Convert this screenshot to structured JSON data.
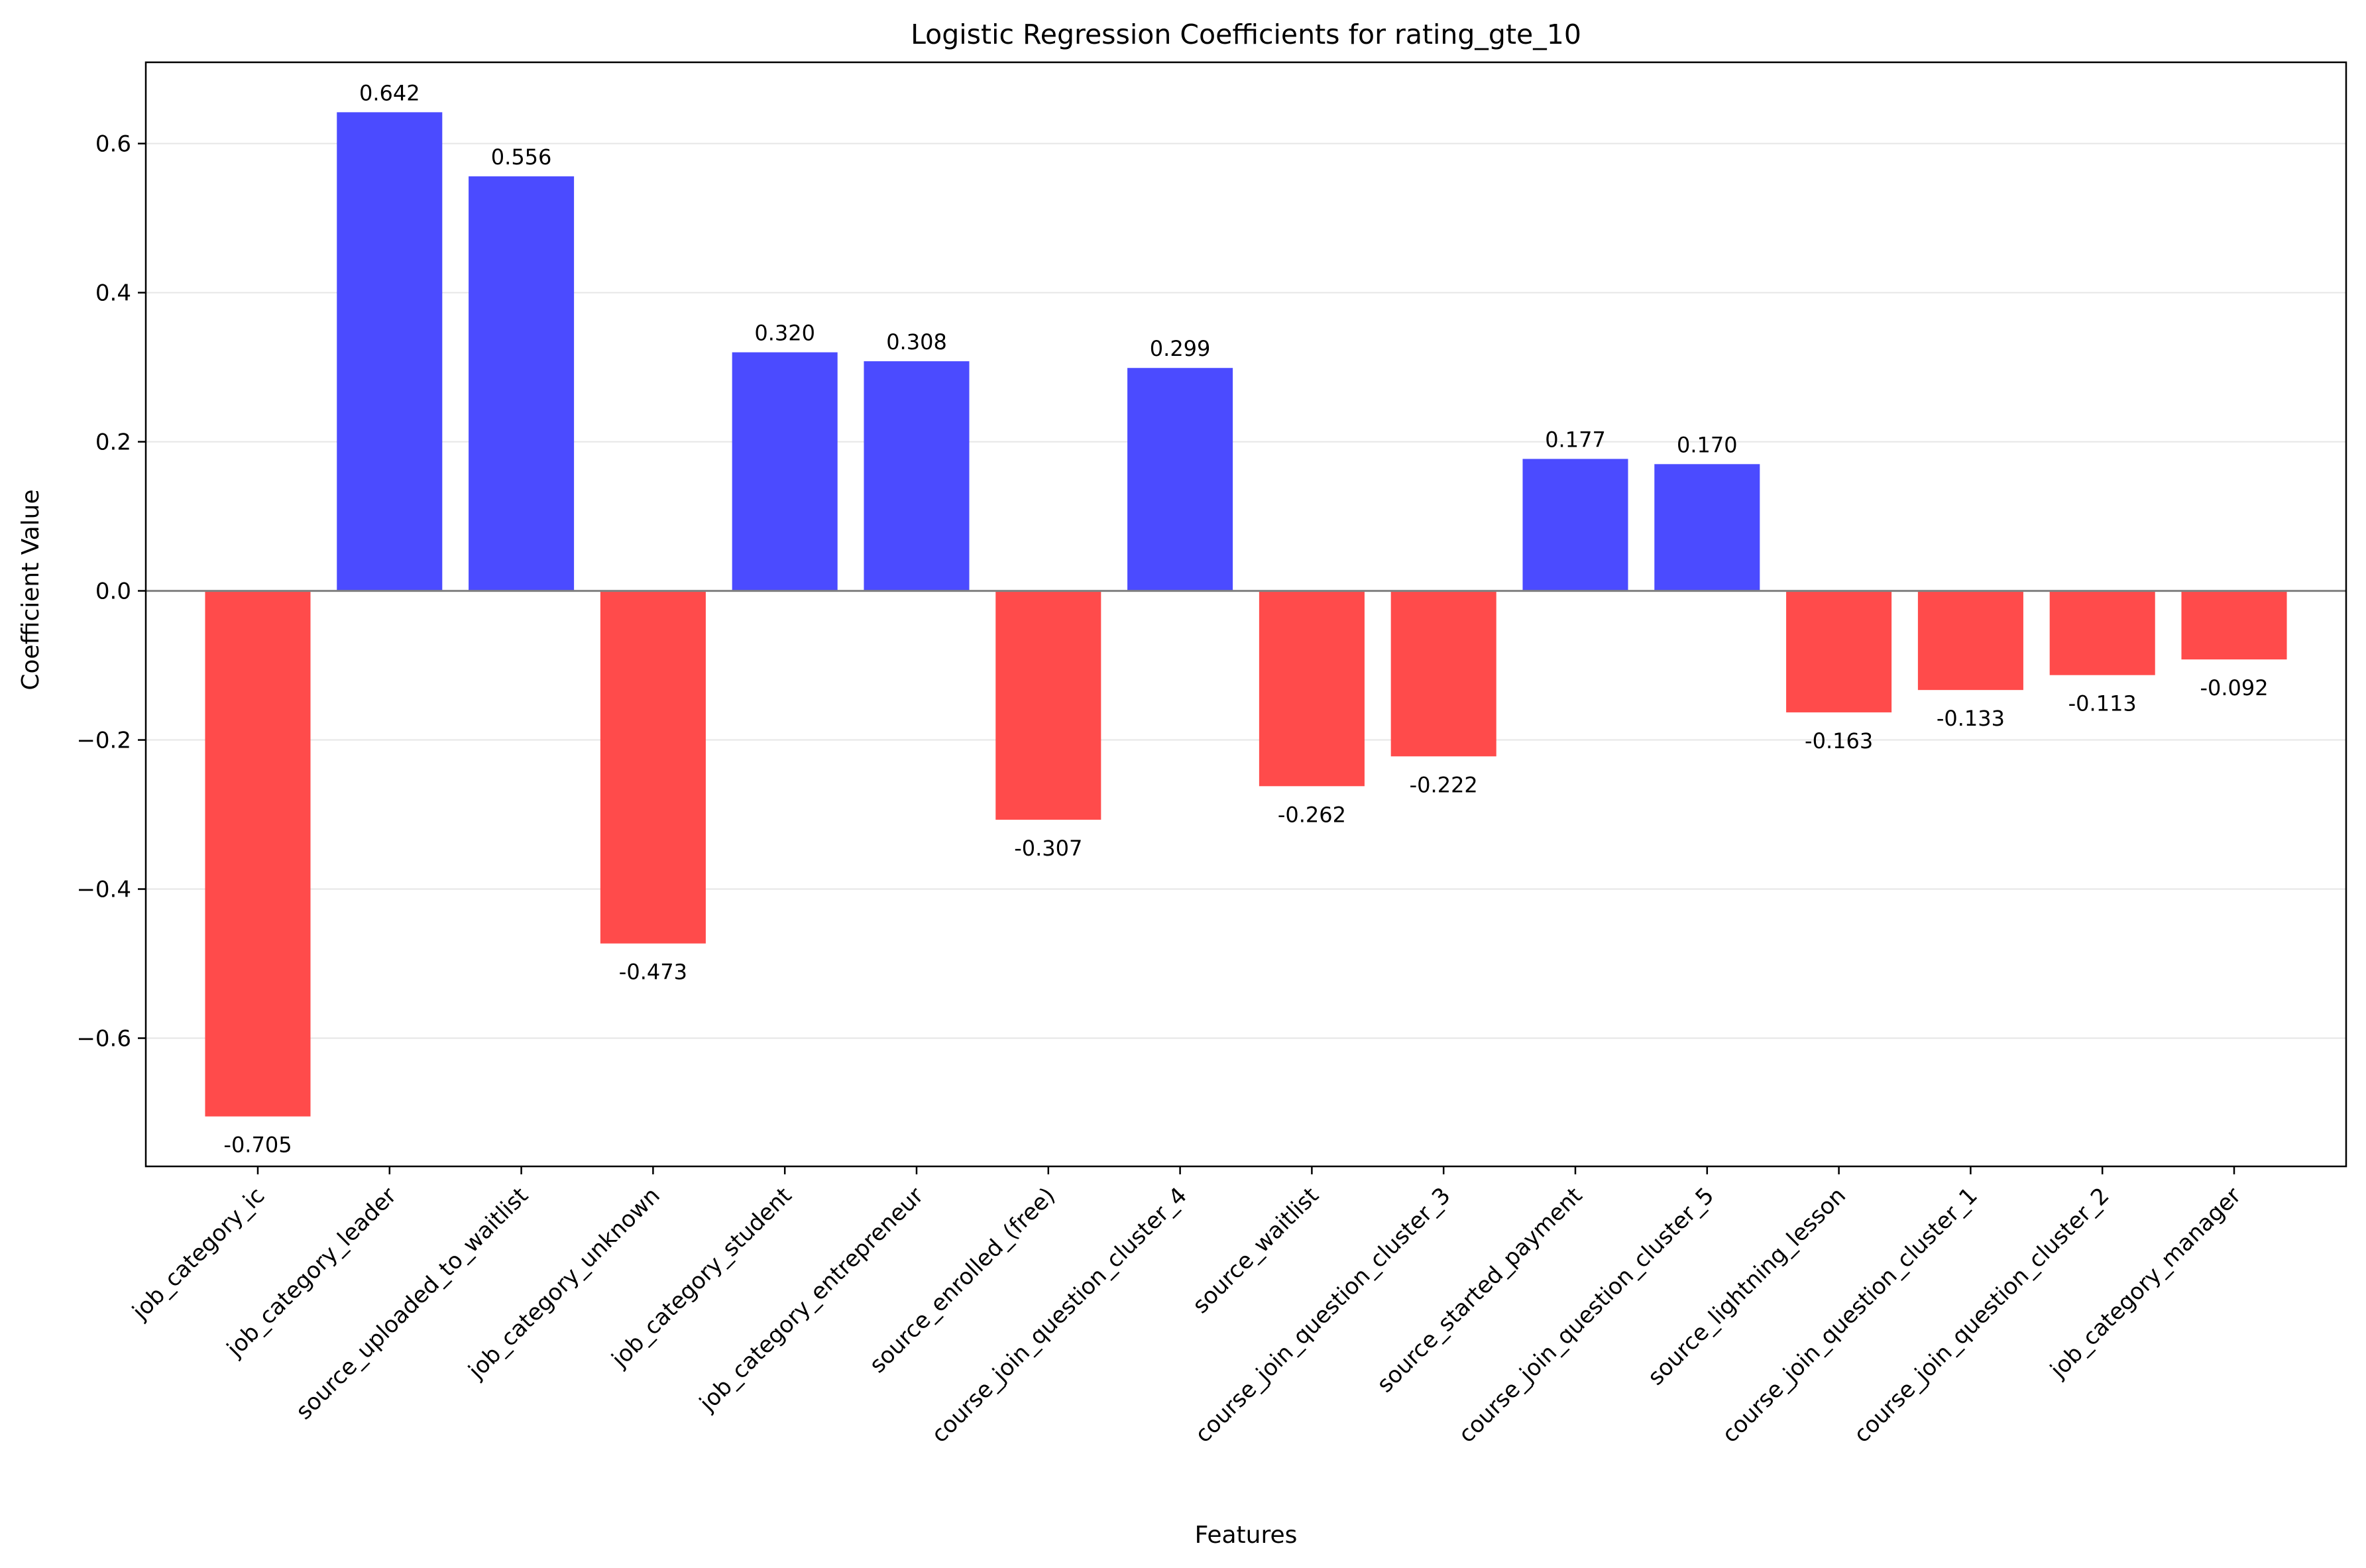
{
  "chart_data": {
    "type": "bar",
    "title": "Logistic Regression Coefficients for rating_gte_10",
    "xlabel": "Features",
    "ylabel": "Coefficient Value",
    "categories": [
      "job_category_ic",
      "job_category_leader",
      "source_uploaded_to_waitlist",
      "job_category_unknown",
      "job_category_student",
      "job_category_entrepreneur",
      "source_enrolled_(free)",
      "course_join_question_cluster_4",
      "source_waitlist",
      "course_join_question_cluster_3",
      "source_started_payment",
      "course_join_question_cluster_5",
      "source_lightning_lesson",
      "course_join_question_cluster_1",
      "course_join_question_cluster_2",
      "job_category_manager"
    ],
    "values": [
      -0.705,
      0.642,
      0.556,
      -0.473,
      0.32,
      0.308,
      -0.307,
      0.299,
      -0.262,
      -0.222,
      0.177,
      0.17,
      -0.163,
      -0.133,
      -0.113,
      -0.092
    ],
    "value_labels": [
      "-0.705",
      "0.642",
      "0.556",
      "-0.473",
      "0.320",
      "0.308",
      "-0.307",
      "0.299",
      "-0.262",
      "-0.222",
      "0.177",
      "0.170",
      "-0.163",
      "-0.133",
      "-0.113",
      "-0.092"
    ],
    "ylim": [
      -0.772,
      0.709
    ],
    "yticks": [
      -0.6,
      -0.4,
      -0.2,
      0.0,
      0.2,
      0.4,
      0.6
    ],
    "ytick_labels": [
      "−0.6",
      "−0.4",
      "−0.2",
      "0.0",
      "0.2",
      "0.4",
      "0.6"
    ],
    "grid": true,
    "colors": {
      "positive": "#4b4bff",
      "negative": "#ff4b4b",
      "zero_line": "#808080",
      "grid": "#e6e6e6"
    }
  }
}
